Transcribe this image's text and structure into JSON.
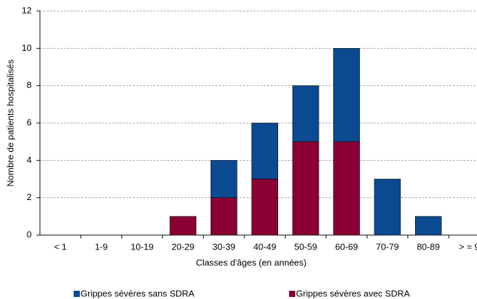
{
  "chart_data": {
    "type": "stacked-bar",
    "x_label": "Classes d'âges (en années)",
    "y_label": "Nombre de patients hospitalisés",
    "categories": [
      "< 1",
      "1-9",
      "10-19",
      "20-29",
      "30-39",
      "40-49",
      "50-59",
      "60-69",
      "70-79",
      "80-89",
      "> = 9"
    ],
    "series": [
      {
        "name": "Grippes sévères sans SDRA",
        "color": "#0b4a91",
        "values": [
          0,
          0,
          0,
          0,
          2,
          3,
          3,
          5,
          3,
          1,
          0
        ]
      },
      {
        "name": "Grippes sévères avec SDRA",
        "color": "#8a0035",
        "values": [
          0,
          0,
          0,
          1,
          2,
          3,
          5,
          5,
          0,
          0,
          0
        ]
      }
    ],
    "ylim": [
      0,
      12
    ],
    "yticks": [
      0,
      2,
      4,
      6,
      8,
      10,
      12
    ],
    "grid": true
  }
}
